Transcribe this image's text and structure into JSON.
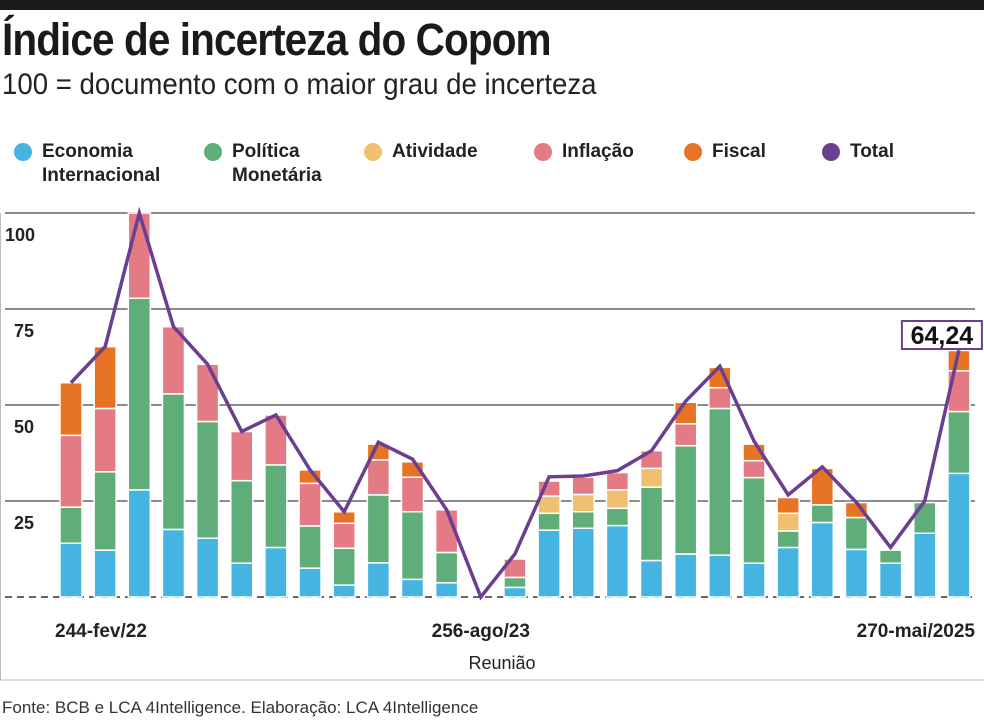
{
  "header": {
    "title": "Índice de incerteza do Copom",
    "subtitle": "100 = documento com o maior grau de incerteza"
  },
  "source": "Fonte: BCB e LCA 4Intelligence. Elaboração: LCA 4Intelligence",
  "chart_data": {
    "type": "bar",
    "stacked": true,
    "xlabel": "Reunião",
    "ylabel": "",
    "ylim": [
      0,
      100
    ],
    "yticks": [
      25,
      50,
      75,
      100
    ],
    "grid": true,
    "legend_placement": "top",
    "x_tick_labels": [
      {
        "index": 0,
        "label": "244-fev/22"
      },
      {
        "index": 12,
        "label": "256-ago/23"
      },
      {
        "index": 26,
        "label": "270-mai/2025"
      }
    ],
    "annotation": {
      "index": 26,
      "label": "64,24"
    },
    "series": [
      {
        "name": "Economia Internacional",
        "color": "#45b4e0",
        "values": [
          14.0,
          12.2,
          27.9,
          17.6,
          15.3,
          8.8,
          12.9,
          7.5,
          3.1,
          8.9,
          4.6,
          3.7,
          0,
          2.5,
          17.4,
          17.9,
          18.6,
          9.5,
          11.2,
          10.9,
          8.8,
          12.9,
          19.4,
          12.4,
          8.8,
          16.6,
          32.2
        ]
      },
      {
        "name": "Política Monetária",
        "color": "#5fae7a",
        "values": [
          9.4,
          20.4,
          49.9,
          35.3,
          30.4,
          21.5,
          21.5,
          11.0,
          9.6,
          17.7,
          17.6,
          7.9,
          0,
          2.6,
          4.4,
          4.3,
          4.5,
          19.1,
          28.2,
          38.2,
          22.3,
          4.3,
          4.6,
          8.3,
          3.4,
          8.0,
          16.1
        ]
      },
      {
        "name": "Atividade",
        "color": "#efc070",
        "values": [
          0,
          0,
          0,
          0,
          0,
          0,
          0,
          0,
          0,
          0,
          0,
          0,
          0,
          0,
          4.5,
          4.5,
          4.8,
          4.9,
          0,
          0,
          0,
          4.6,
          0,
          0,
          0,
          0,
          0
        ]
      },
      {
        "name": "Inflação",
        "color": "#e37a84",
        "values": [
          18.7,
          16.5,
          22.2,
          17.5,
          14.9,
          12.8,
          13.0,
          11.1,
          6.5,
          9.1,
          9.0,
          11.1,
          0,
          4.8,
          3.9,
          4.5,
          4.5,
          4.6,
          5.7,
          5.4,
          4.4,
          0,
          0,
          0,
          0,
          0,
          10.6
        ]
      },
      {
        "name": "Fiscal",
        "color": "#e77424",
        "values": [
          13.7,
          16.1,
          0,
          0,
          0,
          0,
          0,
          3.5,
          3.0,
          4.1,
          4.0,
          0,
          0,
          0,
          0,
          0,
          0,
          0,
          5.6,
          5.3,
          4.3,
          4.1,
          9.5,
          3.9,
          0,
          0,
          5.3
        ]
      }
    ],
    "line": {
      "name": "Total",
      "color": "#6b3f8f",
      "values": [
        55.8,
        65.2,
        100,
        70.4,
        60.6,
        43.1,
        47.4,
        33.1,
        22.2,
        40.3,
        35.9,
        22.7,
        0,
        11.2,
        31.3,
        31.5,
        32.9,
        38.1,
        51.0,
        60.1,
        40.6,
        26.6,
        33.9,
        24.6,
        12.9,
        25.0,
        64.24
      ]
    }
  },
  "legend": [
    {
      "line1": "Economia",
      "line2": "Internacional"
    },
    {
      "line1": "Política",
      "line2": "Monetária"
    },
    {
      "line1": "Atividade",
      "line2": ""
    },
    {
      "line1": "Inflação",
      "line2": ""
    },
    {
      "line1": "Fiscal",
      "line2": ""
    },
    {
      "line1": "Total",
      "line2": ""
    }
  ]
}
